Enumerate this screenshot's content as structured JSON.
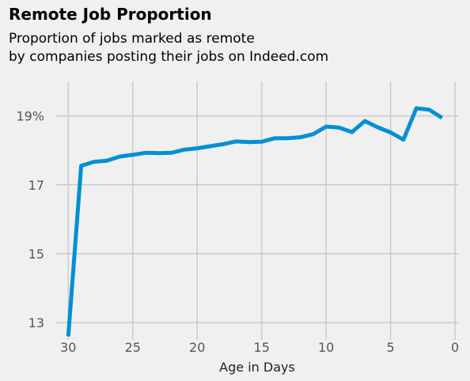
{
  "title": "Remote Job Proportion",
  "subtitle": "Proportion of jobs marked as remote\nby companies posting their jobs on Indeed.com",
  "chart_data": {
    "type": "line",
    "xlabel": "Age in Days",
    "ylabel": "",
    "x_ticks": [
      30,
      25,
      20,
      15,
      10,
      5,
      0
    ],
    "y_ticks": [
      13,
      15,
      17,
      19
    ],
    "y_tick_labels": [
      "13",
      "15",
      "17",
      "19%"
    ],
    "xlim": [
      31,
      -0.3
    ],
    "ylim": [
      12.5,
      20.0
    ],
    "grid": true,
    "line_color": "#008fd5",
    "series": [
      {
        "name": "",
        "x": [
          30,
          29,
          28,
          27,
          26,
          25,
          24,
          23,
          22,
          21,
          20,
          19,
          18,
          17,
          16,
          15,
          14,
          13,
          12,
          11,
          10,
          9,
          8,
          7,
          6,
          5,
          4,
          3,
          2,
          1
        ],
        "y": [
          12.6,
          17.55,
          17.67,
          17.7,
          17.82,
          17.87,
          17.93,
          17.92,
          17.93,
          18.02,
          18.06,
          18.12,
          18.18,
          18.26,
          18.24,
          18.25,
          18.35,
          18.35,
          18.38,
          18.47,
          18.69,
          18.66,
          18.53,
          18.85,
          18.67,
          18.52,
          18.31,
          19.22,
          19.18,
          18.94
        ]
      }
    ]
  }
}
